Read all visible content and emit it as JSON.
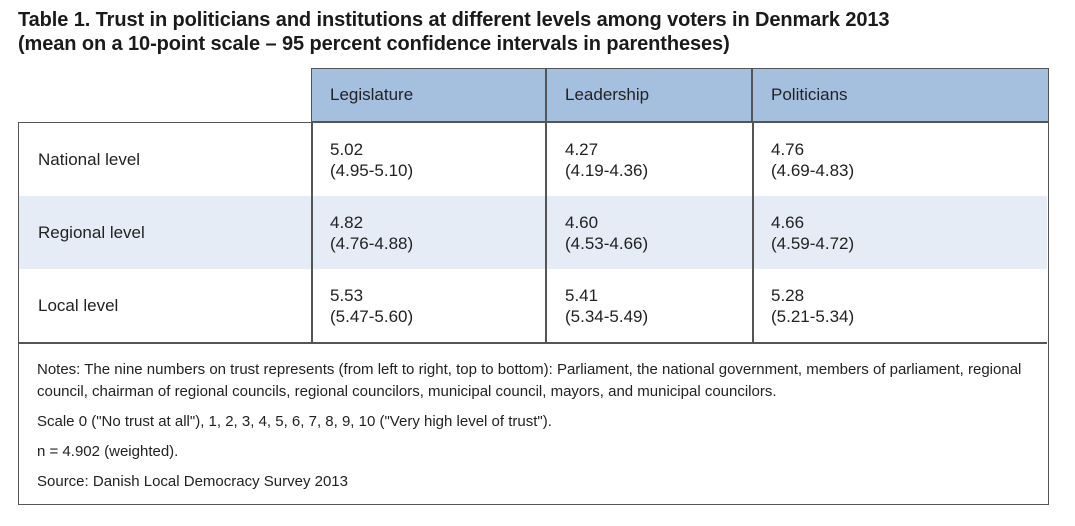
{
  "title": {
    "line1": "Table 1. Trust in politicians and institutions at different levels among voters in Denmark 2013",
    "line2": "(mean on a 10-point scale – 95 percent confidence intervals in parentheses)"
  },
  "columns": [
    "Legislature",
    "Leadership",
    "Politicians"
  ],
  "rows": [
    {
      "label": "National level",
      "cells": [
        {
          "mean": "5.02",
          "ci": "(4.95-5.10)"
        },
        {
          "mean": "4.27",
          "ci": "(4.19-4.36)"
        },
        {
          "mean": "4.76",
          "ci": "(4.69-4.83)"
        }
      ]
    },
    {
      "label": "Regional level",
      "cells": [
        {
          "mean": "4.82",
          "ci": "(4.76-4.88)"
        },
        {
          "mean": "4.60",
          "ci": "(4.53-4.66)"
        },
        {
          "mean": "4.66",
          "ci": "(4.59-4.72)"
        }
      ]
    },
    {
      "label": "Local level",
      "cells": [
        {
          "mean": "5.53",
          "ci": "(5.47-5.60)"
        },
        {
          "mean": "5.41",
          "ci": "(5.34-5.49)"
        },
        {
          "mean": "5.28",
          "ci": "(5.21-5.34)"
        }
      ]
    }
  ],
  "notes": [
    "Notes: The nine numbers on trust represents (from left to right, top to bottom): Parliament, the national government, members of parliament, regional council, chairman of regional councils, regional councilors, municipal council, mayors, and municipal councilors.",
    "Scale 0 (\"No trust at all\"), 1, 2, 3, 4, 5, 6, 7, 8, 9, 10 (\"Very high level of trust\").",
    "n = 4.902 (weighted).",
    "Source: Danish Local Democracy Survey 2013"
  ],
  "colors": {
    "header_fill": "#a5c0df",
    "shaded_row": "#e5ecf6",
    "border": "#555555"
  }
}
